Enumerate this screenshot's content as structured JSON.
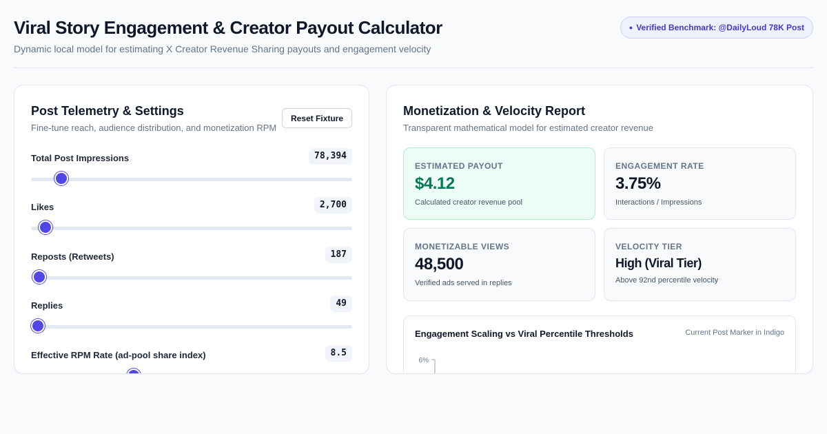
{
  "header": {
    "title": "Viral Story Engagement & Creator Payout Calculator",
    "subtitle": "Dynamic local model for estimating X Creator Revenue Sharing payouts and engagement velocity",
    "badge": "Verified Benchmark: @DailyLoud 78K Post"
  },
  "settings": {
    "title": "Post Telemetry & Settings",
    "subtitle": "Fine-tune reach, audience distribution, and monetization RPM",
    "reset_label": "Reset Fixture",
    "controls": [
      {
        "label": "Total Post Impressions",
        "value": "78,394",
        "fill_fraction": 0.095
      },
      {
        "label": "Likes",
        "value": "2,700",
        "fill_fraction": 0.045
      },
      {
        "label": "Reposts (Retweets)",
        "value": "187",
        "fill_fraction": 0.025
      },
      {
        "label": "Replies",
        "value": "49",
        "fill_fraction": 0.022
      },
      {
        "label": "Effective RPM Rate (ad-pool share index)",
        "value": "8.5",
        "fill_fraction": 0.32
      }
    ]
  },
  "report": {
    "title": "Monetization & Velocity Report",
    "subtitle": "Transparent mathematical model for estimated creator revenue",
    "stats": {
      "payout": {
        "label": "Estimated Payout",
        "value": "$4.12",
        "note": "Calculated creator revenue pool"
      },
      "engagement": {
        "label": "Engagement Rate",
        "value": "3.75%",
        "note": "Interactions / Impressions"
      },
      "views": {
        "label": "Monetizable Views",
        "value": "48,500",
        "note": "Verified ads served in replies"
      },
      "velocity": {
        "label": "Velocity Tier",
        "value": "High (Viral Tier)",
        "note": "Above 92nd percentile velocity"
      }
    },
    "chart": {
      "title": "Engagement Scaling vs Viral Percentile Thresholds",
      "note": "Current Post Marker in Indigo"
    }
  },
  "colors": {
    "accent": "#4f46e5",
    "success": "#047857",
    "badge_text": "#4338ca"
  },
  "chart_data": {
    "type": "line",
    "title": "Engagement Scaling vs Viral Percentile Thresholds",
    "y_tick_labels": [
      "6%"
    ],
    "series": []
  }
}
